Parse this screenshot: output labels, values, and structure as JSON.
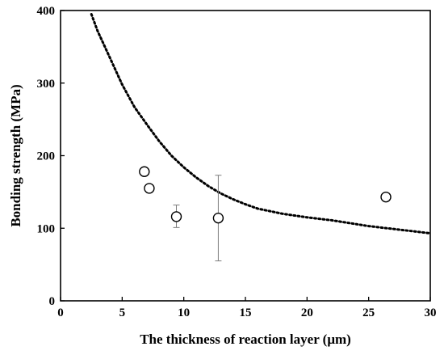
{
  "chart_data": {
    "type": "scatter",
    "title": "",
    "xlabel": "The thickness of reaction layer (μm)",
    "ylabel": "Bonding strength (MPa)",
    "xlim": [
      0,
      30
    ],
    "ylim": [
      0,
      400
    ],
    "x_ticks": [
      "0",
      "5",
      "10",
      "15",
      "20",
      "25",
      "30"
    ],
    "y_ticks": [
      "0",
      "100",
      "200",
      "300",
      "400"
    ],
    "grid": false,
    "legend": "none",
    "points": [
      {
        "x": 6.8,
        "y": 178,
        "err_low": null,
        "err_high": null
      },
      {
        "x": 7.2,
        "y": 155,
        "err_low": null,
        "err_high": null
      },
      {
        "x": 9.4,
        "y": 116,
        "err_low": 101,
        "err_high": 132
      },
      {
        "x": 12.8,
        "y": 114,
        "err_low": 55,
        "err_high": 173
      },
      {
        "x": 26.4,
        "y": 143,
        "err_low": null,
        "err_high": null
      }
    ],
    "fit_curve": {
      "style": "dotted",
      "points": [
        [
          2.5,
          395
        ],
        [
          3,
          372
        ],
        [
          4,
          335
        ],
        [
          5,
          298
        ],
        [
          6,
          267
        ],
        [
          7,
          243
        ],
        [
          8,
          220
        ],
        [
          9,
          200
        ],
        [
          10,
          184
        ],
        [
          11,
          170
        ],
        [
          12,
          158
        ],
        [
          13,
          148
        ],
        [
          14,
          140
        ],
        [
          15,
          133
        ],
        [
          16,
          127
        ],
        [
          18,
          120
        ],
        [
          20,
          115
        ],
        [
          22,
          111
        ],
        [
          25,
          103
        ],
        [
          28,
          97
        ],
        [
          30,
          93
        ]
      ]
    }
  }
}
